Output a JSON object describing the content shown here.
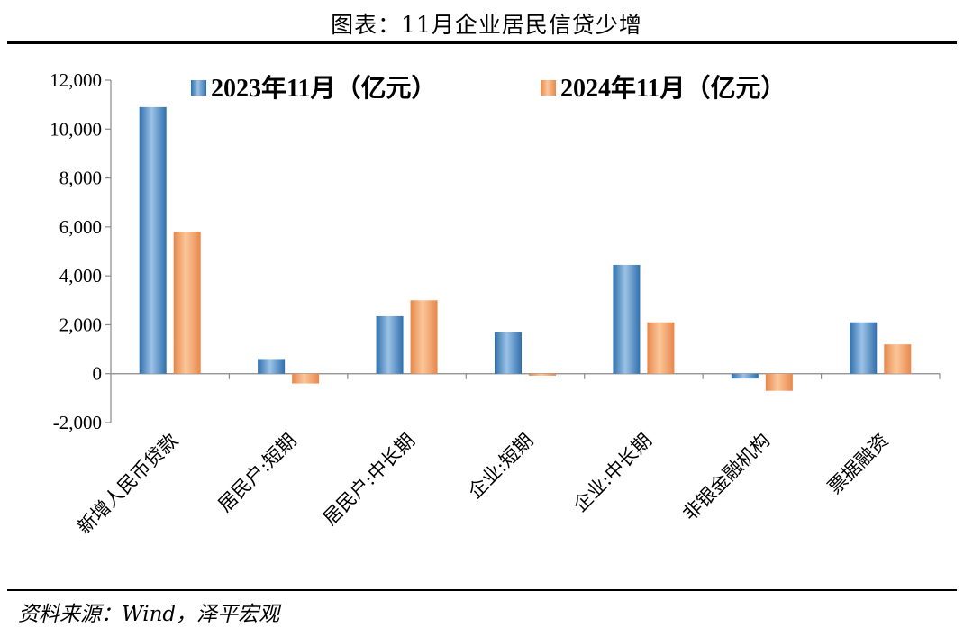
{
  "title": "图表：11月企业居民信贷少增",
  "source": "资料来源：Wind，泽平宏观",
  "chart_data": {
    "type": "bar",
    "categories": [
      "新增人民币贷款",
      "居民户:短期",
      "居民户:中长期",
      "企业:短期",
      "企业:中长期",
      "非银金融机构",
      "票据融资"
    ],
    "series": [
      {
        "name": "2023年11月（亿元）",
        "values": [
          10900,
          600,
          2350,
          1700,
          4450,
          -200,
          2100
        ],
        "color": "#4a86c0"
      },
      {
        "name": "2024年11月（亿元）",
        "values": [
          5800,
          -400,
          3000,
          -80,
          2100,
          -700,
          1200
        ],
        "color": "#f0a060"
      }
    ],
    "yticks": [
      "12,000",
      "10,000",
      "8,000",
      "6,000",
      "4,000",
      "2,000",
      "0",
      "-2,000"
    ],
    "ylim": [
      -2000,
      12000
    ],
    "legend_position": "top"
  }
}
